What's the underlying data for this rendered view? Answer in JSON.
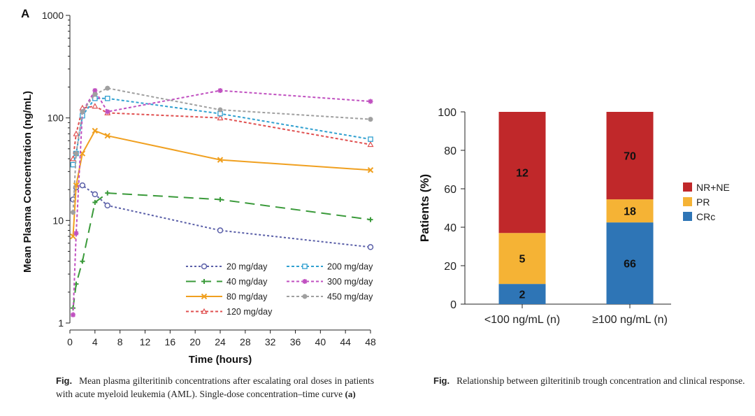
{
  "panel_letter": "A",
  "captions": {
    "left_prefix": "Fig.",
    "left_text": "Mean plasma gilteritinib concentrations after escalating oral doses in patients with acute myeloid leukemia (AML). Single-dose concentration–time curve",
    "left_suffix": "(a)",
    "right_prefix": "Fig.",
    "right_text": "Relationship between gilteritinib trough concentration and clinical response."
  },
  "chart_data": [
    {
      "type": "line",
      "title": "",
      "xlabel": "Time (hours)",
      "ylabel": "Mean Plasma Concentration (ng/mL)",
      "xlim": [
        0,
        48
      ],
      "xticks": [
        0,
        4,
        8,
        12,
        16,
        20,
        24,
        28,
        32,
        36,
        40,
        44,
        48
      ],
      "ylim": [
        1,
        1000
      ],
      "yscale": "log",
      "yticks": [
        1,
        10,
        100,
        1000
      ],
      "grid": false,
      "legend_position": "bottom-right",
      "series": [
        {
          "name": "20 mg/day",
          "color": "#5a5fa8",
          "dash": "3,3",
          "marker": "circle",
          "x": [
            0.5,
            1,
            2,
            4,
            6,
            24,
            48
          ],
          "y": [
            16,
            21,
            22,
            18,
            14,
            8,
            5.5
          ]
        },
        {
          "name": "40 mg/day",
          "color": "#3a9a3a",
          "dash": "14,8",
          "marker": "plus",
          "x": [
            0.5,
            1,
            2,
            4,
            6,
            24,
            48
          ],
          "y": [
            1.4,
            2.4,
            4,
            15,
            18.5,
            16,
            10.2
          ]
        },
        {
          "name": "80 mg/day",
          "color": "#f0a020",
          "dash": "",
          "marker": "x",
          "x": [
            0.5,
            1,
            2,
            4,
            6,
            24,
            48
          ],
          "y": [
            7,
            22,
            45,
            75,
            67,
            39,
            31
          ]
        },
        {
          "name": "120 mg/day",
          "color": "#e05050",
          "dash": "4,3",
          "marker": "triangle",
          "x": [
            0.5,
            1,
            2,
            4,
            6,
            24,
            48
          ],
          "y": [
            40,
            70,
            125,
            130,
            112,
            100,
            55
          ]
        },
        {
          "name": "200 mg/day",
          "color": "#30a0d0",
          "dash": "4,3",
          "marker": "square",
          "x": [
            0.5,
            1,
            2,
            4,
            6,
            24,
            48
          ],
          "y": [
            35,
            45,
            105,
            155,
            155,
            110,
            62
          ]
        },
        {
          "name": "300 mg/day",
          "color": "#c050c0",
          "dash": "4,3",
          "marker": "star",
          "x": [
            0.5,
            1,
            2,
            4,
            6,
            24,
            48
          ],
          "y": [
            1.2,
            7.5,
            115,
            185,
            115,
            185,
            145
          ]
        },
        {
          "name": "450 mg/day",
          "color": "#a0a0a0",
          "dash": "4,3",
          "marker": "dot",
          "x": [
            0.5,
            1,
            2,
            4,
            6,
            24,
            48
          ],
          "y": [
            12,
            45,
            115,
            170,
            195,
            120,
            97
          ]
        }
      ]
    },
    {
      "type": "bar",
      "stacked": true,
      "title": "",
      "xlabel": "",
      "ylabel": "Patients (%)",
      "ylim": [
        0,
        100
      ],
      "yticks": [
        0,
        20,
        40,
        60,
        80,
        100
      ],
      "legend_position": "right",
      "categories": [
        "<100 ng/mL (n)",
        "≥100 ng/mL (n)"
      ],
      "series": [
        {
          "name": "CRc",
          "color": "#2e75b6",
          "values": [
            10.5,
            42.5
          ],
          "labels": [
            "2",
            "66"
          ]
        },
        {
          "name": "PR",
          "color": "#f5b335",
          "values": [
            26.5,
            12
          ],
          "labels": [
            "5",
            "18"
          ]
        },
        {
          "name": "NR+NE",
          "color": "#c0282a",
          "values": [
            63,
            45.5
          ],
          "labels": [
            "12",
            "70"
          ]
        }
      ]
    }
  ]
}
